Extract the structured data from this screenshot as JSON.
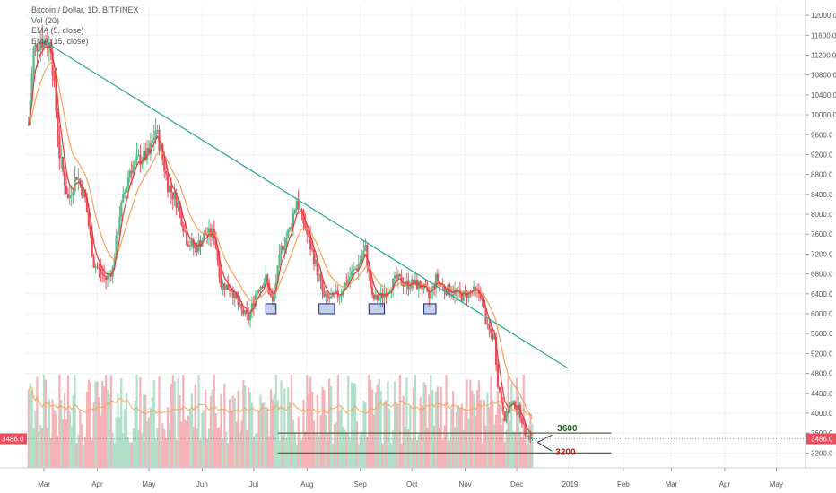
{
  "legend": {
    "title": "Bitcoin / Dollar, 1D, BITFINEX",
    "indicators": [
      "Vol (20)",
      "EMA (5, close)",
      "EMA (15, close)"
    ]
  },
  "colors": {
    "up": "#53b987",
    "down": "#eb4d5c",
    "up_volume": "#b2dfc9",
    "down_volume": "#f5b3b8",
    "ema_fast": "#e53935",
    "ema_slow": "#f5a25b",
    "trendline": "#26a69a",
    "support_box": "#5a78c8",
    "level_line": "#55683c",
    "price_tag": "#eb4d5c",
    "grid": "#eef0f3",
    "axis_text": "#555555",
    "level_3600": "#1b5e20",
    "level_3200": "#b71c1c"
  },
  "chart_data": {
    "type": "candlestick",
    "title": "Bitcoin / Dollar, 1D, BITFINEX",
    "ylim": [
      2900,
      12200
    ],
    "y_ticks": [
      3200,
      3600,
      4000,
      4400,
      4800,
      5200,
      5600,
      6000,
      6400,
      6800,
      7200,
      7600,
      8000,
      8400,
      8800,
      9200,
      9600,
      10000,
      10400,
      10800,
      11200,
      11600,
      12000
    ],
    "y_tick_labels": [
      "3200.0",
      "3600.0",
      "4000.0",
      "4400.0",
      "4800.0",
      "5200.0",
      "5600.0",
      "6000.0",
      "6400.0",
      "6800.0",
      "7200.0",
      "7600.0",
      "8000.0",
      "8400.0",
      "8800.0",
      "9200.0",
      "9600.0",
      "10000.0",
      "10400.0",
      "10800.0",
      "11200.0",
      "11600.0",
      "12000.0"
    ],
    "x_range": [
      "2018-02-18",
      "2019-05-18"
    ],
    "x_ticks": [
      {
        "date": "2018-03-01",
        "label": "Mar"
      },
      {
        "date": "2018-04-01",
        "label": "Apr"
      },
      {
        "date": "2018-05-01",
        "label": "May"
      },
      {
        "date": "2018-06-01",
        "label": "Jun"
      },
      {
        "date": "2018-07-01",
        "label": "Jul"
      },
      {
        "date": "2018-08-01",
        "label": "Aug"
      },
      {
        "date": "2018-09-01",
        "label": "Sep"
      },
      {
        "date": "2018-10-01",
        "label": "Oct"
      },
      {
        "date": "2018-11-01",
        "label": "Nov"
      },
      {
        "date": "2018-12-01",
        "label": "Dec"
      },
      {
        "date": "2019-01-01",
        "label": "2019"
      },
      {
        "date": "2019-02-01",
        "label": "Feb"
      },
      {
        "date": "2019-03-01",
        "label": "Mar"
      },
      {
        "date": "2019-04-01",
        "label": "Apr"
      },
      {
        "date": "2019-05-01",
        "label": "May"
      }
    ],
    "price_path": [
      {
        "date": "2018-02-20",
        "close": 9800
      },
      {
        "date": "2018-02-23",
        "close": 11300
      },
      {
        "date": "2018-02-27",
        "close": 11500
      },
      {
        "date": "2018-03-05",
        "close": 11400
      },
      {
        "date": "2018-03-10",
        "close": 9200
      },
      {
        "date": "2018-03-15",
        "close": 8300
      },
      {
        "date": "2018-03-20",
        "close": 8800
      },
      {
        "date": "2018-03-25",
        "close": 8300
      },
      {
        "date": "2018-03-30",
        "close": 7000
      },
      {
        "date": "2018-04-06",
        "close": 6700
      },
      {
        "date": "2018-04-10",
        "close": 6900
      },
      {
        "date": "2018-04-14",
        "close": 8000
      },
      {
        "date": "2018-04-20",
        "close": 8900
      },
      {
        "date": "2018-04-25",
        "close": 9100
      },
      {
        "date": "2018-05-01",
        "close": 9200
      },
      {
        "date": "2018-05-05",
        "close": 9700
      },
      {
        "date": "2018-05-08",
        "close": 9300
      },
      {
        "date": "2018-05-12",
        "close": 8600
      },
      {
        "date": "2018-05-18",
        "close": 8200
      },
      {
        "date": "2018-05-23",
        "close": 7500
      },
      {
        "date": "2018-05-28",
        "close": 7300
      },
      {
        "date": "2018-06-03",
        "close": 7600
      },
      {
        "date": "2018-06-08",
        "close": 7600
      },
      {
        "date": "2018-06-12",
        "close": 6600
      },
      {
        "date": "2018-06-18",
        "close": 6500
      },
      {
        "date": "2018-06-23",
        "close": 6100
      },
      {
        "date": "2018-06-28",
        "close": 5900
      },
      {
        "date": "2018-07-03",
        "close": 6500
      },
      {
        "date": "2018-07-08",
        "close": 6700
      },
      {
        "date": "2018-07-12",
        "close": 6200
      },
      {
        "date": "2018-07-17",
        "close": 7300
      },
      {
        "date": "2018-07-22",
        "close": 7700
      },
      {
        "date": "2018-07-26",
        "close": 8300
      },
      {
        "date": "2018-08-01",
        "close": 7600
      },
      {
        "date": "2018-08-06",
        "close": 7000
      },
      {
        "date": "2018-08-11",
        "close": 6300
      },
      {
        "date": "2018-08-15",
        "close": 6300
      },
      {
        "date": "2018-08-20",
        "close": 6400
      },
      {
        "date": "2018-08-25",
        "close": 6700
      },
      {
        "date": "2018-08-31",
        "close": 7000
      },
      {
        "date": "2018-09-04",
        "close": 7300
      },
      {
        "date": "2018-09-08",
        "close": 6300
      },
      {
        "date": "2018-09-12",
        "close": 6300
      },
      {
        "date": "2018-09-17",
        "close": 6500
      },
      {
        "date": "2018-09-22",
        "close": 6700
      },
      {
        "date": "2018-09-27",
        "close": 6600
      },
      {
        "date": "2018-10-02",
        "close": 6600
      },
      {
        "date": "2018-10-07",
        "close": 6550
      },
      {
        "date": "2018-10-11",
        "close": 6300
      },
      {
        "date": "2018-10-15",
        "close": 6700
      },
      {
        "date": "2018-10-20",
        "close": 6500
      },
      {
        "date": "2018-10-25",
        "close": 6450
      },
      {
        "date": "2018-10-30",
        "close": 6350
      },
      {
        "date": "2018-11-05",
        "close": 6450
      },
      {
        "date": "2018-11-10",
        "close": 6400
      },
      {
        "date": "2018-11-14",
        "close": 5700
      },
      {
        "date": "2018-11-18",
        "close": 5500
      },
      {
        "date": "2018-11-20",
        "close": 4600
      },
      {
        "date": "2018-11-24",
        "close": 3900
      },
      {
        "date": "2018-11-28",
        "close": 4200
      },
      {
        "date": "2018-12-02",
        "close": 4100
      },
      {
        "date": "2018-12-06",
        "close": 3600
      },
      {
        "date": "2018-12-10",
        "close": 3486
      }
    ],
    "trendline": {
      "from": {
        "date": "2018-02-28",
        "price": 11500
      },
      "to": {
        "date": "2018-12-31",
        "price": 4900
      }
    },
    "support_boxes": [
      {
        "from": "2018-07-08",
        "to": "2018-07-14",
        "low": 6000,
        "high": 6200
      },
      {
        "from": "2018-08-08",
        "to": "2018-08-17",
        "low": 6000,
        "high": 6200
      },
      {
        "from": "2018-09-06",
        "to": "2018-09-15",
        "low": 6000,
        "high": 6200
      },
      {
        "from": "2018-10-08",
        "to": "2018-10-15",
        "low": 6000,
        "high": 6200
      }
    ],
    "levels": [
      {
        "price": 3600,
        "label": "3600",
        "from": "2018-07-15",
        "to": "2019-01-25"
      },
      {
        "price": 3200,
        "label": "3200",
        "from": "2018-07-15",
        "to": "2019-01-25"
      }
    ],
    "last_price": 3486,
    "last_price_label": "3486.0"
  }
}
